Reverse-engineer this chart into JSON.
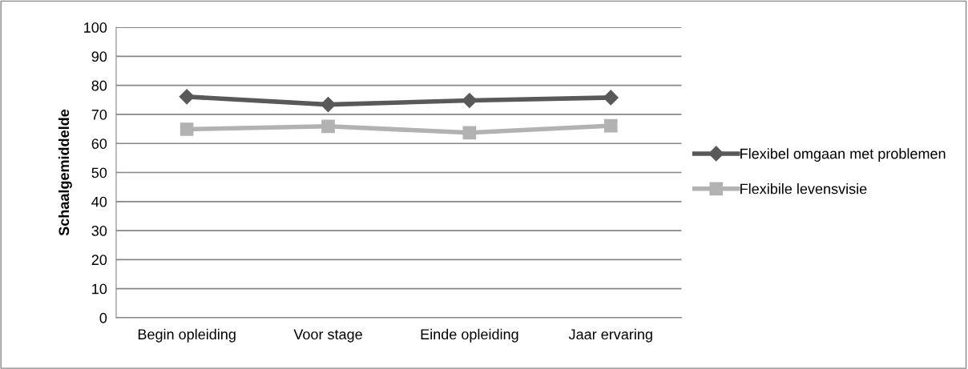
{
  "chart_data": {
    "type": "line",
    "ylabel": "Schaalgemiddelde",
    "categories": [
      "Begin opleiding",
      "Voor stage",
      "Einde opleiding",
      "Jaar ervaring"
    ],
    "series": [
      {
        "name": "Flexibel omgaan met problemen",
        "color": "#595959",
        "marker": "diamond",
        "values": [
          76.1,
          73.4,
          74.8,
          75.8
        ]
      },
      {
        "name": "Flexibile levensvisie",
        "color": "#b2b2b2",
        "marker": "square",
        "values": [
          64.9,
          65.9,
          63.7,
          66.1
        ]
      }
    ],
    "ylim": [
      0,
      100
    ],
    "yticks": [
      0,
      10,
      20,
      30,
      40,
      50,
      60,
      70,
      80,
      90,
      100
    ],
    "grid": "y",
    "legend": "right",
    "line_style": "solid"
  }
}
